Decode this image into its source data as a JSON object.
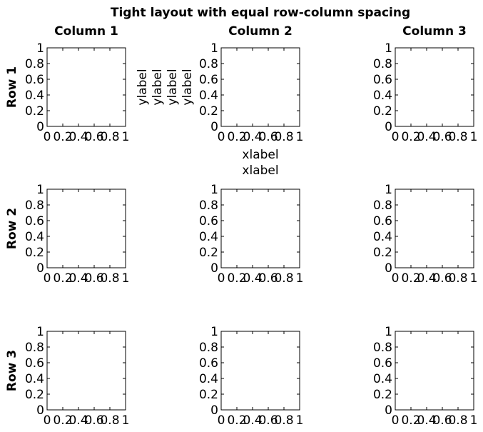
{
  "chart_data": {
    "type": "grid-of-empty-axes",
    "title": "Tight layout with equal row-column spacing",
    "column_titles": [
      "Column 1",
      "Column 2",
      "Column 3"
    ],
    "row_labels": [
      "Row 1",
      "Row 2",
      "Row 3"
    ],
    "xlim": [
      0,
      1
    ],
    "ylim": [
      0,
      1
    ],
    "x_ticks": [
      0,
      0.2,
      0.4,
      0.6,
      0.8,
      1
    ],
    "y_ticks": [
      0,
      0.2,
      0.4,
      0.6,
      0.8,
      1
    ],
    "x_tick_labels": [
      "0",
      "0.2",
      "0.4",
      "0.6",
      "0.8",
      "1"
    ],
    "y_tick_labels": [
      "0",
      "0.2",
      "0.4",
      "0.6",
      "0.8",
      "1"
    ],
    "grid": false,
    "series": [],
    "extra_labels": {
      "row1_col2_ylabels": [
        "ylabel",
        "ylabel",
        "ylabel",
        "ylabel"
      ],
      "row1_col2_xlabels": [
        "xlabel",
        "xlabel"
      ]
    }
  }
}
